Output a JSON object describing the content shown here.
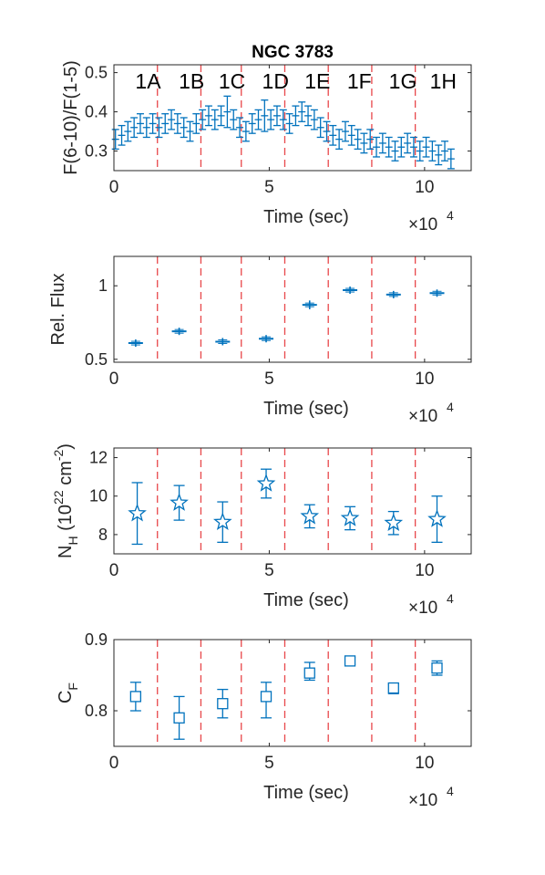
{
  "chart_data": [
    {
      "type": "scatter",
      "title": "NGC 3783",
      "xlabel": "Time (sec)",
      "ylabel": "F(6-10)/F(1-5)",
      "x_multiplier": "×10",
      "x_multiplier_exp": "4",
      "xlim": [
        0,
        11.5
      ],
      "ylim": [
        0.25,
        0.52
      ],
      "xticks": [
        0,
        5,
        10
      ],
      "xtick_labels": [
        "0",
        "5",
        "10"
      ],
      "yticks": [
        0.3,
        0.4,
        0.5
      ],
      "ytick_labels": [
        "0.3",
        "0.4",
        "0.5"
      ],
      "segment_boundaries": [
        1.4,
        2.8,
        4.1,
        5.5,
        6.9,
        8.3,
        9.7
      ],
      "segment_labels": [
        {
          "text": "1A",
          "x": 1.1
        },
        {
          "text": "1B",
          "x": 2.5
        },
        {
          "text": "1C",
          "x": 3.8
        },
        {
          "text": "1D",
          "x": 5.2
        },
        {
          "text": "1E",
          "x": 6.55
        },
        {
          "text": "1F",
          "x": 7.9
        },
        {
          "text": "1G",
          "x": 9.3
        },
        {
          "text": "1H",
          "x": 10.6
        }
      ],
      "series": [
        {
          "marker": "errorbar",
          "x": [
            0.05,
            0.25,
            0.45,
            0.65,
            0.85,
            1.05,
            1.25,
            1.45,
            1.65,
            1.85,
            2.05,
            2.25,
            2.45,
            2.65,
            2.85,
            3.05,
            3.25,
            3.45,
            3.65,
            3.85,
            4.05,
            4.25,
            4.45,
            4.65,
            4.85,
            5.05,
            5.25,
            5.45,
            5.65,
            5.85,
            6.05,
            6.25,
            6.45,
            6.65,
            6.85,
            7.05,
            7.25,
            7.45,
            7.65,
            7.85,
            8.05,
            8.25,
            8.45,
            8.65,
            8.85,
            9.05,
            9.25,
            9.45,
            9.65,
            9.85,
            10.05,
            10.25,
            10.45,
            10.65,
            10.85
          ],
          "y": [
            0.33,
            0.34,
            0.35,
            0.36,
            0.37,
            0.36,
            0.37,
            0.36,
            0.37,
            0.38,
            0.37,
            0.36,
            0.35,
            0.37,
            0.38,
            0.39,
            0.38,
            0.39,
            0.4,
            0.38,
            0.36,
            0.35,
            0.37,
            0.38,
            0.39,
            0.38,
            0.39,
            0.38,
            0.37,
            0.39,
            0.4,
            0.39,
            0.38,
            0.36,
            0.35,
            0.34,
            0.33,
            0.35,
            0.34,
            0.33,
            0.32,
            0.33,
            0.31,
            0.32,
            0.31,
            0.3,
            0.31,
            0.32,
            0.31,
            0.3,
            0.31,
            0.3,
            0.29,
            0.3,
            0.28
          ],
          "err": [
            0.025,
            0.025,
            0.025,
            0.025,
            0.025,
            0.025,
            0.025,
            0.025,
            0.025,
            0.025,
            0.025,
            0.025,
            0.025,
            0.025,
            0.025,
            0.025,
            0.025,
            0.025,
            0.04,
            0.025,
            0.025,
            0.025,
            0.025,
            0.025,
            0.04,
            0.025,
            0.025,
            0.025,
            0.025,
            0.025,
            0.025,
            0.025,
            0.025,
            0.025,
            0.025,
            0.025,
            0.025,
            0.025,
            0.025,
            0.025,
            0.025,
            0.025,
            0.025,
            0.025,
            0.025,
            0.025,
            0.025,
            0.025,
            0.025,
            0.025,
            0.025,
            0.025,
            0.025,
            0.025,
            0.025
          ]
        }
      ]
    },
    {
      "type": "scatter",
      "title": "",
      "xlabel": "Time (sec)",
      "ylabel": "Rel. Flux",
      "x_multiplier": "×10",
      "x_multiplier_exp": "4",
      "xlim": [
        0,
        11.5
      ],
      "ylim": [
        0.48,
        1.2
      ],
      "xticks": [
        0,
        5,
        10
      ],
      "xtick_labels": [
        "0",
        "5",
        "10"
      ],
      "yticks": [
        0.5,
        1.0
      ],
      "ytick_labels": [
        "0.5",
        "1"
      ],
      "segment_boundaries": [
        1.4,
        2.8,
        4.1,
        5.5,
        6.9,
        8.3,
        9.7
      ],
      "series": [
        {
          "marker": "plus",
          "x": [
            0.7,
            2.1,
            3.5,
            4.9,
            6.3,
            7.6,
            9.0,
            10.4
          ],
          "y": [
            0.61,
            0.69,
            0.62,
            0.64,
            0.87,
            0.97,
            0.94,
            0.95
          ],
          "err": [
            0.025,
            0.025,
            0.025,
            0.025,
            0.03,
            0.025,
            0.025,
            0.025
          ]
        }
      ]
    },
    {
      "type": "scatter",
      "title": "",
      "xlabel": "Time (sec)",
      "ylabel": "N",
      "ylabel_sub": "H",
      "ylabel_rest": " (10",
      "ylabel_sup": "22",
      "ylabel_unit": " cm",
      "ylabel_sup2": "-2",
      "ylabel_close": ")",
      "x_multiplier": "×10",
      "x_multiplier_exp": "4",
      "xlim": [
        0,
        11.5
      ],
      "ylim": [
        7,
        12.5
      ],
      "xticks": [
        0,
        5,
        10
      ],
      "xtick_labels": [
        "0",
        "5",
        "10"
      ],
      "yticks": [
        8,
        10,
        12
      ],
      "ytick_labels": [
        "8",
        "10",
        "12"
      ],
      "segment_boundaries": [
        1.4,
        2.8,
        4.1,
        5.5,
        6.9,
        8.3,
        9.7
      ],
      "series": [
        {
          "marker": "star",
          "x": [
            0.75,
            2.1,
            3.5,
            4.9,
            6.3,
            7.6,
            9.0,
            10.4
          ],
          "y": [
            9.1,
            9.65,
            8.65,
            10.65,
            8.95,
            8.85,
            8.6,
            8.8
          ],
          "yerr_low": [
            1.6,
            0.9,
            1.05,
            0.75,
            0.6,
            0.6,
            0.6,
            1.2
          ],
          "yerr_high": [
            1.6,
            0.9,
            1.05,
            0.75,
            0.6,
            0.6,
            0.6,
            1.2
          ]
        }
      ]
    },
    {
      "type": "scatter",
      "title": "",
      "xlabel": "Time (sec)",
      "ylabel": "C",
      "ylabel_sub": "F",
      "x_multiplier": "×10",
      "x_multiplier_exp": "4",
      "xlim": [
        0,
        11.5
      ],
      "ylim": [
        0.75,
        0.9
      ],
      "xticks": [
        0,
        5,
        10
      ],
      "xtick_labels": [
        "0",
        "5",
        "10"
      ],
      "yticks": [
        0.8,
        0.9
      ],
      "ytick_labels": [
        "0.8",
        "0.9"
      ],
      "segment_boundaries": [
        1.4,
        2.8,
        4.1,
        5.5,
        6.9,
        8.3,
        9.7
      ],
      "series": [
        {
          "marker": "square",
          "x": [
            0.7,
            2.1,
            3.5,
            4.9,
            6.3,
            7.6,
            9.0,
            10.4
          ],
          "y": [
            0.82,
            0.79,
            0.81,
            0.82,
            0.853,
            0.87,
            0.832,
            0.86
          ],
          "yerr_low": [
            0.02,
            0.03,
            0.02,
            0.03,
            0.01,
            0.005,
            0.008,
            0.01
          ],
          "yerr_high": [
            0.02,
            0.03,
            0.02,
            0.02,
            0.015,
            0.005,
            0.005,
            0.01
          ]
        }
      ]
    }
  ],
  "colors": {
    "data": "#0072BD",
    "boundary": "#E8474A",
    "axis": "#262626"
  }
}
